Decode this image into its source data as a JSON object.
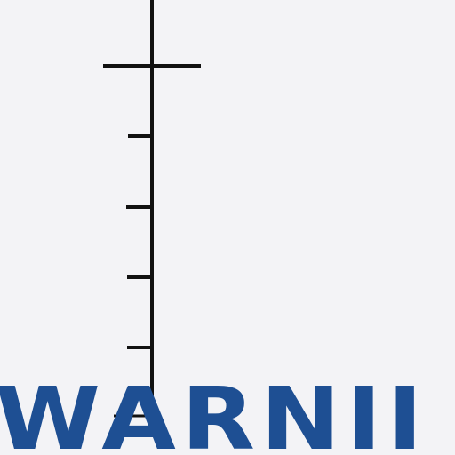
{
  "sign": {
    "text": "WARNII",
    "text_color": "#1e4f93",
    "line_color": "#111111",
    "background_color": "#f3f3f6"
  }
}
